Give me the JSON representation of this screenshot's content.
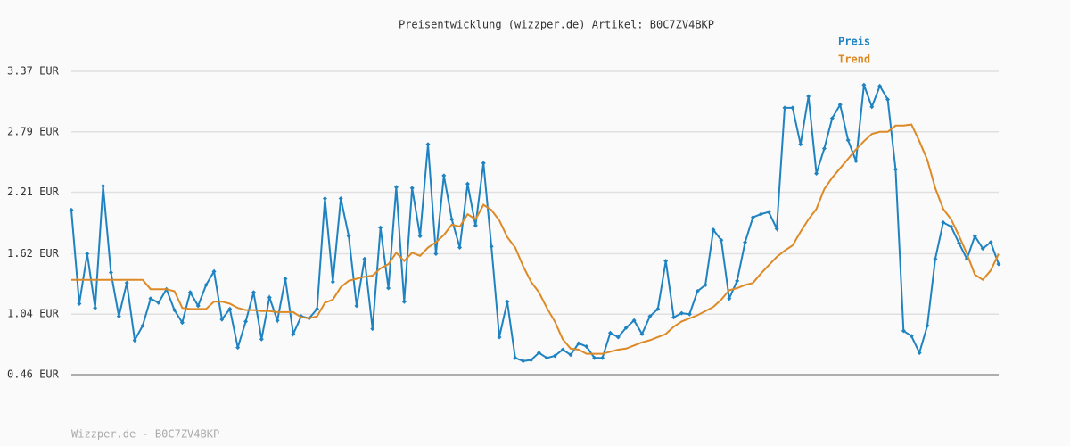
{
  "chart_data": {
    "type": "line",
    "title": "Preisentwicklung (wizzper.de) Artikel: B0C7ZV4BKP",
    "footer": "Wizzper.de - B0C7ZV4BKP",
    "ylim": [
      0.46,
      3.37
    ],
    "yticks": [
      {
        "value": 0.46,
        "label": "0.46 EUR"
      },
      {
        "value": 1.04,
        "label": "1.04 EUR"
      },
      {
        "value": 1.62,
        "label": "1.62 EUR"
      },
      {
        "value": 2.21,
        "label": "2.21 EUR"
      },
      {
        "value": 2.79,
        "label": "2.79 EUR"
      },
      {
        "value": 3.37,
        "label": "3.37 EUR"
      }
    ],
    "grid": true,
    "legend": "top-right",
    "series": [
      {
        "name": "Preis",
        "color": "#1f83c1",
        "markers": true,
        "values": [
          2.04,
          1.14,
          1.62,
          1.1,
          2.27,
          1.44,
          1.02,
          1.34,
          0.79,
          0.93,
          1.19,
          1.15,
          1.28,
          1.08,
          0.96,
          1.25,
          1.12,
          1.32,
          1.45,
          0.99,
          1.09,
          0.72,
          0.97,
          1.25,
          0.8,
          1.2,
          0.98,
          1.38,
          0.85,
          1.02,
          1.0,
          1.09,
          2.15,
          1.35,
          2.15,
          1.79,
          1.12,
          1.57,
          0.9,
          1.87,
          1.29,
          2.26,
          1.16,
          2.25,
          1.79,
          2.67,
          1.62,
          2.37,
          1.95,
          1.68,
          2.29,
          1.89,
          2.49,
          1.69,
          0.82,
          1.16,
          0.62,
          0.59,
          0.6,
          0.67,
          0.62,
          0.64,
          0.7,
          0.65,
          0.76,
          0.73,
          0.62,
          0.62,
          0.86,
          0.82,
          0.91,
          0.98,
          0.85,
          1.02,
          1.09,
          1.55,
          1.01,
          1.05,
          1.04,
          1.26,
          1.32,
          1.85,
          1.75,
          1.19,
          1.36,
          1.73,
          1.97,
          2.0,
          2.02,
          1.86,
          3.02,
          3.02,
          2.67,
          3.13,
          2.39,
          2.63,
          2.92,
          3.05,
          2.71,
          2.51,
          3.24,
          3.03,
          3.23,
          3.1,
          2.43,
          0.88,
          0.83,
          0.67,
          0.93,
          1.57,
          1.92,
          1.88,
          1.72,
          1.57,
          1.79,
          1.67,
          1.73,
          1.52
        ]
      },
      {
        "name": "Trend",
        "color": "#dd8a26",
        "markers": false,
        "values": [
          1.37,
          1.37,
          1.37,
          1.37,
          1.37,
          1.37,
          1.37,
          1.37,
          1.37,
          1.37,
          1.28,
          1.28,
          1.28,
          1.26,
          1.1,
          1.09,
          1.09,
          1.09,
          1.16,
          1.16,
          1.14,
          1.1,
          1.08,
          1.08,
          1.07,
          1.07,
          1.06,
          1.06,
          1.06,
          1.01,
          1.0,
          1.02,
          1.15,
          1.18,
          1.3,
          1.36,
          1.38,
          1.4,
          1.41,
          1.48,
          1.52,
          1.63,
          1.55,
          1.63,
          1.6,
          1.68,
          1.73,
          1.8,
          1.9,
          1.88,
          2.0,
          1.95,
          2.09,
          2.04,
          1.94,
          1.78,
          1.68,
          1.5,
          1.35,
          1.25,
          1.1,
          0.97,
          0.8,
          0.71,
          0.7,
          0.66,
          0.66,
          0.66,
          0.68,
          0.7,
          0.71,
          0.74,
          0.77,
          0.79,
          0.82,
          0.85,
          0.92,
          0.97,
          1.0,
          1.03,
          1.07,
          1.11,
          1.18,
          1.27,
          1.29,
          1.32,
          1.34,
          1.43,
          1.51,
          1.59,
          1.65,
          1.7,
          1.83,
          1.95,
          2.05,
          2.24,
          2.35,
          2.44,
          2.53,
          2.62,
          2.7,
          2.77,
          2.79,
          2.79,
          2.85,
          2.85,
          2.86,
          2.7,
          2.52,
          2.25,
          2.05,
          1.95,
          1.79,
          1.62,
          1.42,
          1.37,
          1.46,
          1.62
        ]
      }
    ]
  }
}
